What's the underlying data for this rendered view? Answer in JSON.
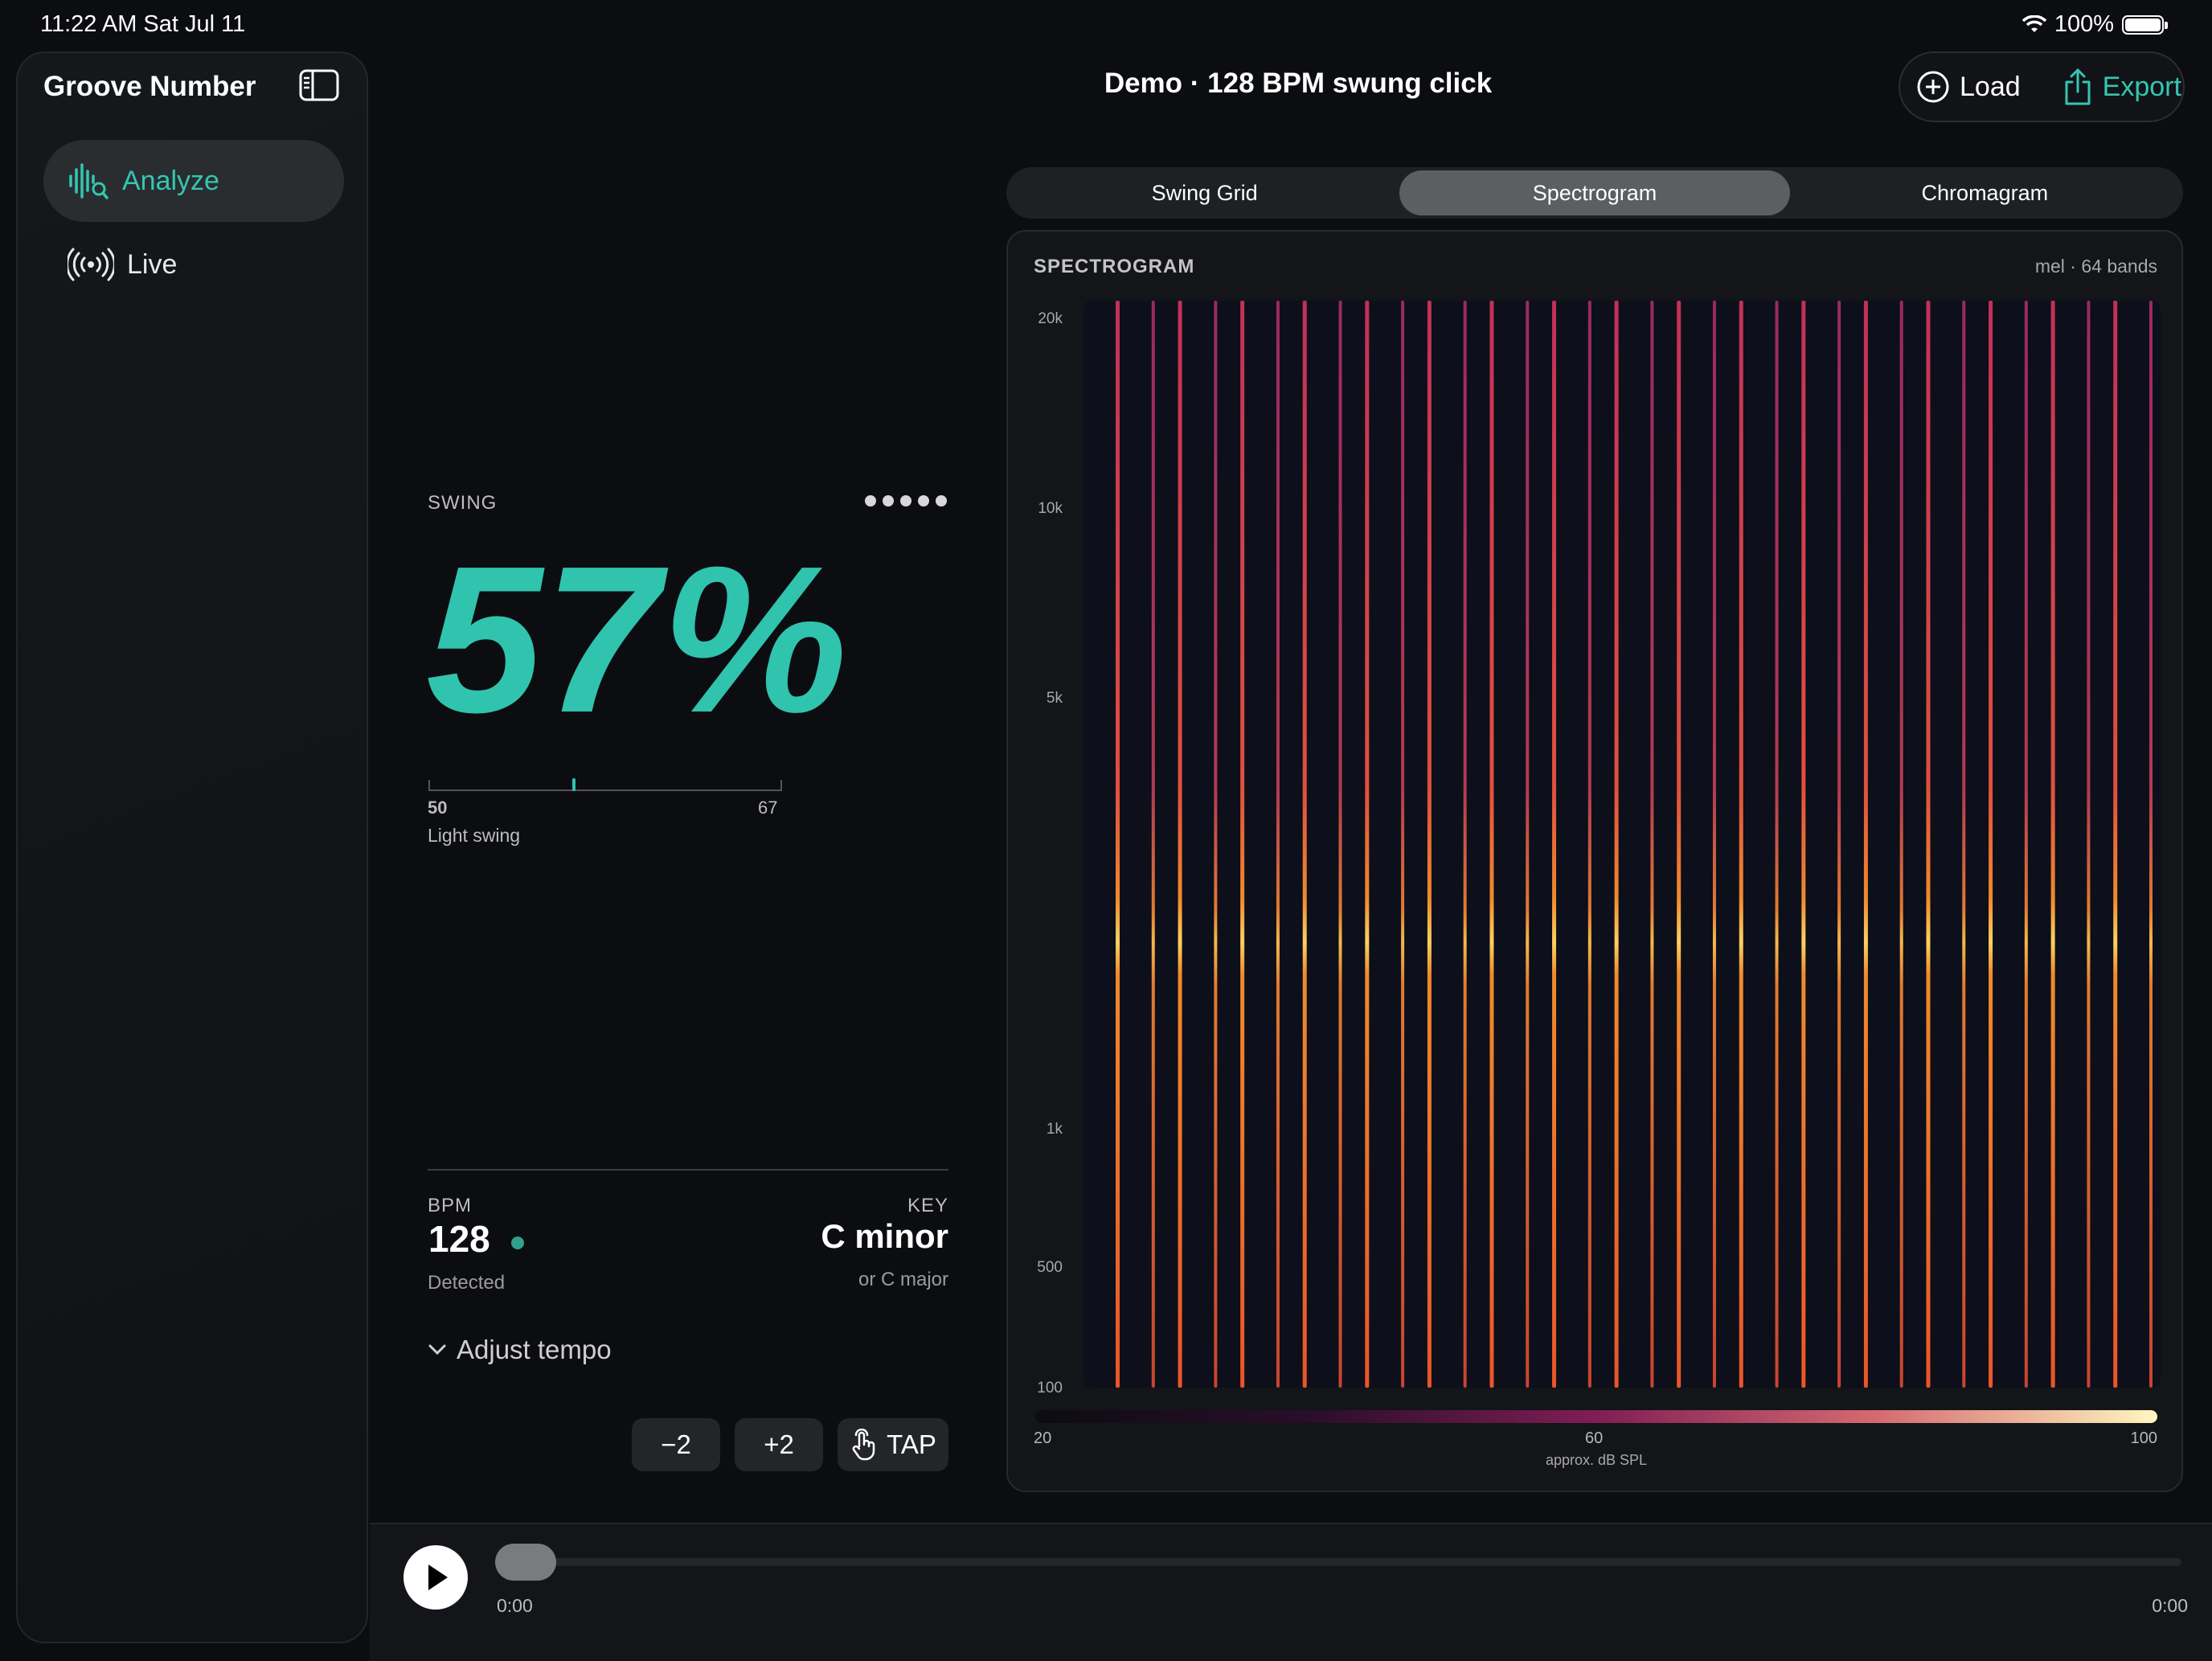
{
  "status": {
    "time": "11:22 AM   Sat Jul 11",
    "battery": "100%"
  },
  "sidebar": {
    "title": "Groove Number",
    "items": [
      {
        "label": "Analyze",
        "icon": "waveform-magnifier-icon",
        "active": true
      },
      {
        "label": "Live",
        "icon": "broadcast-icon",
        "active": false
      }
    ]
  },
  "header": {
    "title": "Demo · 128 BPM swung click",
    "load_label": "Load",
    "export_label": "Export"
  },
  "swing": {
    "label": "SWING",
    "value": "57%",
    "value_fraction": 0.57,
    "scale_min": "50",
    "scale_max": "67",
    "description": "Light swing"
  },
  "bpm": {
    "label": "BPM",
    "value": "128",
    "status": "Detected"
  },
  "key": {
    "label": "KEY",
    "value": "C minor",
    "alt": "or C major"
  },
  "tempo": {
    "adjust_label": "Adjust tempo",
    "minus_label": "−2",
    "plus_label": "+2",
    "tap_label": "TAP"
  },
  "tabs": [
    {
      "label": "Swing Grid",
      "selected": false
    },
    {
      "label": "Spectrogram",
      "selected": true
    },
    {
      "label": "Chromagram",
      "selected": false
    }
  ],
  "spectrogram": {
    "title": "SPECTROGRAM",
    "subtitle": "mel · 64 bands",
    "freq_labels": [
      "20k",
      "10k",
      "5k",
      "1k",
      "500",
      "100"
    ],
    "legend": {
      "min": "20",
      "mid": "60",
      "max": "100",
      "unit": "approx. dB SPL"
    },
    "colors": {
      "low": "#0c0c12",
      "mid": "#801e55",
      "high": "#fff7c0",
      "accent": "#30c3ae"
    }
  },
  "player": {
    "time_elapsed": "0:00",
    "time_total": "0:00"
  }
}
